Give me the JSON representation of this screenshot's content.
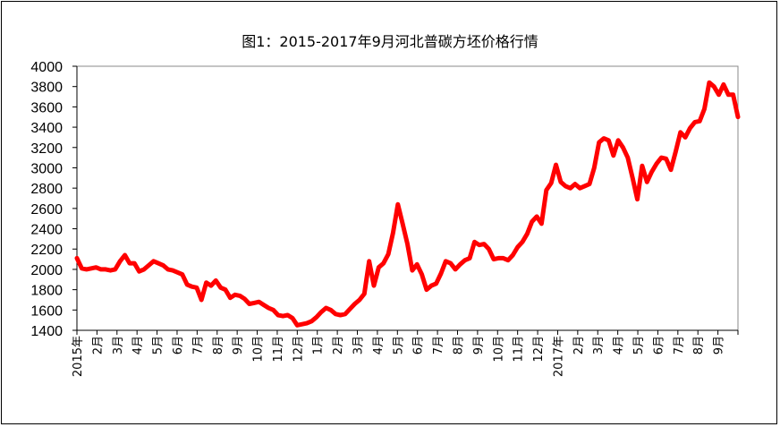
{
  "chart_data": {
    "type": "line",
    "title": "图1：2015-2017年9月河北普碳方坯价格行情",
    "xlabel": "",
    "ylabel": "",
    "ylim": [
      1400,
      4000
    ],
    "yticks": [
      "4000",
      "3800",
      "3600",
      "3400",
      "3200",
      "3000",
      "2800",
      "2600",
      "2400",
      "2200",
      "2000",
      "1800",
      "1600",
      "1400"
    ],
    "xticks": [
      "2015年",
      "2月",
      "3月",
      "4月",
      "5月",
      "6月",
      "7月",
      "8月",
      "9月",
      "10月",
      "11月",
      "12月",
      "1月",
      "2月",
      "3月",
      "4月",
      "5月",
      "6月",
      "7月",
      "8月",
      "9月",
      "10月",
      "11月",
      "12月",
      "2017年",
      "2月",
      "3月",
      "4月",
      "5月",
      "6月",
      "7月",
      "8月",
      "9月"
    ],
    "grid": false,
    "line_color": "#ff0000",
    "series": [
      {
        "values": [
          2110,
          2010,
          2000,
          2010,
          2020,
          2000,
          2000,
          1990,
          2000,
          2080,
          2140,
          2060,
          2060,
          1980,
          2000,
          2040,
          2080,
          2060,
          2040,
          2000,
          1990,
          1970,
          1950,
          1850,
          1830,
          1820,
          1700,
          1870,
          1840,
          1890,
          1820,
          1800,
          1720,
          1750,
          1740,
          1710,
          1660,
          1670,
          1680,
          1650,
          1620,
          1600,
          1550,
          1540,
          1550,
          1520,
          1450,
          1460,
          1470,
          1490,
          1530,
          1580,
          1620,
          1600,
          1560,
          1550,
          1560,
          1610,
          1660,
          1700,
          1760,
          2080,
          1840,
          2020,
          2060,
          2150,
          2360,
          2640,
          2450,
          2250,
          1990,
          2050,
          1950,
          1800,
          1840,
          1860,
          1960,
          2080,
          2060,
          2000,
          2050,
          2090,
          2110,
          2270,
          2240,
          2250,
          2200,
          2100,
          2110,
          2110,
          2090,
          2140,
          2220,
          2270,
          2350,
          2470,
          2520,
          2450,
          2780,
          2850,
          3030,
          2860,
          2820,
          2800,
          2840,
          2800,
          2820,
          2840,
          3000,
          3250,
          3290,
          3270,
          3120,
          3270,
          3200,
          3100,
          2900,
          2690,
          3020,
          2860,
          2960,
          3040,
          3100,
          3090,
          2980,
          3160,
          3350,
          3300,
          3390,
          3450,
          3460,
          3580,
          3840,
          3800,
          3720,
          3820,
          3720,
          3720,
          3500
        ]
      }
    ]
  }
}
